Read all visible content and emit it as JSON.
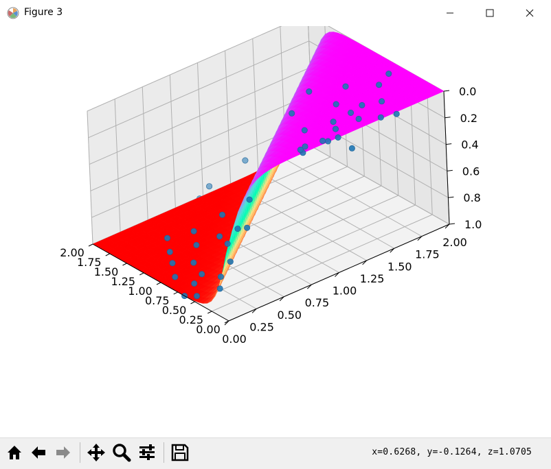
{
  "window": {
    "title": "Figure 3",
    "controls": [
      "minimize",
      "maximize",
      "close"
    ]
  },
  "toolbar": {
    "buttons": [
      {
        "name": "home-icon",
        "tooltip": "Home"
      },
      {
        "name": "back-icon",
        "tooltip": "Back"
      },
      {
        "name": "forward-icon",
        "tooltip": "Forward"
      },
      {
        "name": "pan-icon",
        "tooltip": "Pan"
      },
      {
        "name": "zoom-icon",
        "tooltip": "Zoom"
      },
      {
        "name": "configure-subplots-icon",
        "tooltip": "Configure subplots"
      },
      {
        "name": "save-icon",
        "tooltip": "Save"
      }
    ],
    "coords": "x=0.6268,  y=-0.1264,  z=1.0705"
  },
  "chart_data": {
    "type": "scatter",
    "projection": "3d",
    "title": "",
    "xlabel": "",
    "ylabel": "",
    "zlabel": "",
    "xlim": [
      0,
      2
    ],
    "ylim": [
      0,
      2
    ],
    "zlim": [
      1.0,
      0.0
    ],
    "x_ticks": [
      "0.00",
      "0.25",
      "0.50",
      "0.75",
      "1.00",
      "1.25",
      "1.50",
      "1.75",
      "2.00"
    ],
    "y_ticks": [
      "0.00",
      "0.25",
      "0.50",
      "0.75",
      "1.00",
      "1.25",
      "1.50",
      "1.75",
      "2.00"
    ],
    "z_ticks": [
      "0.0",
      "0.2",
      "0.4",
      "0.6",
      "0.8",
      "1.0"
    ],
    "grid": true,
    "surface": {
      "colormap": "rainbow",
      "description_function": "z = 1 - sigmoid(10*(x - y)), inverted z-axis"
    },
    "scatter_color": "#1f77b4",
    "scatter_points": [
      {
        "x": 0.05,
        "y": 0.98,
        "z": 0.02
      },
      {
        "x": 0.1,
        "y": 1.1,
        "z": 0.05
      },
      {
        "x": 0.2,
        "y": 1.35,
        "z": 0.03
      },
      {
        "x": 0.12,
        "y": 1.5,
        "z": 0.05
      },
      {
        "x": 0.05,
        "y": 1.6,
        "z": 0.04
      },
      {
        "x": 0.3,
        "y": 1.2,
        "z": 0.08
      },
      {
        "x": 0.25,
        "y": 1.05,
        "z": 0.1
      },
      {
        "x": 0.4,
        "y": 1.4,
        "z": 0.06
      },
      {
        "x": 0.35,
        "y": 1.65,
        "z": 0.05
      },
      {
        "x": 0.5,
        "y": 1.3,
        "z": 0.12
      },
      {
        "x": 0.48,
        "y": 1.55,
        "z": 0.08
      },
      {
        "x": 0.6,
        "y": 1.1,
        "z": 0.14
      },
      {
        "x": 0.18,
        "y": 0.85,
        "z": 0.05
      },
      {
        "x": 0.55,
        "y": 1.75,
        "z": 0.02
      },
      {
        "x": 0.7,
        "y": 1.45,
        "z": 0.1
      },
      {
        "x": 0.3,
        "y": 0.9,
        "z": 0.15
      },
      {
        "x": 0.65,
        "y": 1.9,
        "z": 0.02
      },
      {
        "x": 0.8,
        "y": 1.6,
        "z": 0.05
      },
      {
        "x": 0.42,
        "y": 0.95,
        "z": 0.18
      },
      {
        "x": 0.15,
        "y": 1.25,
        "z": 0.2
      },
      {
        "x": 0.6,
        "y": 0.3,
        "z": 0.95
      },
      {
        "x": 0.7,
        "y": 0.45,
        "z": 0.92
      },
      {
        "x": 0.8,
        "y": 0.25,
        "z": 0.97
      },
      {
        "x": 0.9,
        "y": 0.55,
        "z": 0.88
      },
      {
        "x": 1.0,
        "y": 0.3,
        "z": 0.96
      },
      {
        "x": 1.1,
        "y": 0.6,
        "z": 0.9
      },
      {
        "x": 0.75,
        "y": 0.15,
        "z": 0.99
      },
      {
        "x": 1.2,
        "y": 0.45,
        "z": 0.94
      },
      {
        "x": 1.3,
        "y": 0.75,
        "z": 0.85
      },
      {
        "x": 0.95,
        "y": 0.1,
        "z": 0.98
      },
      {
        "x": 1.4,
        "y": 0.55,
        "z": 0.93
      },
      {
        "x": 1.5,
        "y": 0.85,
        "z": 0.86
      },
      {
        "x": 1.15,
        "y": 0.2,
        "z": 0.97
      },
      {
        "x": 1.6,
        "y": 0.7,
        "z": 0.92
      },
      {
        "x": 0.85,
        "y": 0.7,
        "z": 0.8
      },
      {
        "x": 1.7,
        "y": 0.95,
        "z": 0.88
      },
      {
        "x": 1.35,
        "y": 0.3,
        "z": 0.98
      },
      {
        "x": 1.8,
        "y": 0.85,
        "z": 0.91
      },
      {
        "x": 1.55,
        "y": 0.4,
        "z": 0.97
      },
      {
        "x": 1.9,
        "y": 1.0,
        "z": 0.9
      },
      {
        "x": 0.55,
        "y": 0.05,
        "z": 0.99
      },
      {
        "x": 0.65,
        "y": 0.0,
        "z": 1.0
      },
      {
        "x": 0.45,
        "y": 0.2,
        "z": 0.96
      },
      {
        "x": 1.05,
        "y": 0.85,
        "z": 0.7
      },
      {
        "x": 1.25,
        "y": 1.0,
        "z": 0.75
      },
      {
        "x": 1.75,
        "y": 0.6,
        "z": 0.98
      },
      {
        "x": 0.4,
        "y": 0.35,
        "z": 0.55
      },
      {
        "x": 1.85,
        "y": 1.3,
        "z": 0.8
      },
      {
        "x": 0.95,
        "y": 1.2,
        "z": 0.15
      },
      {
        "x": 1.1,
        "y": 1.45,
        "z": 0.12
      }
    ]
  }
}
